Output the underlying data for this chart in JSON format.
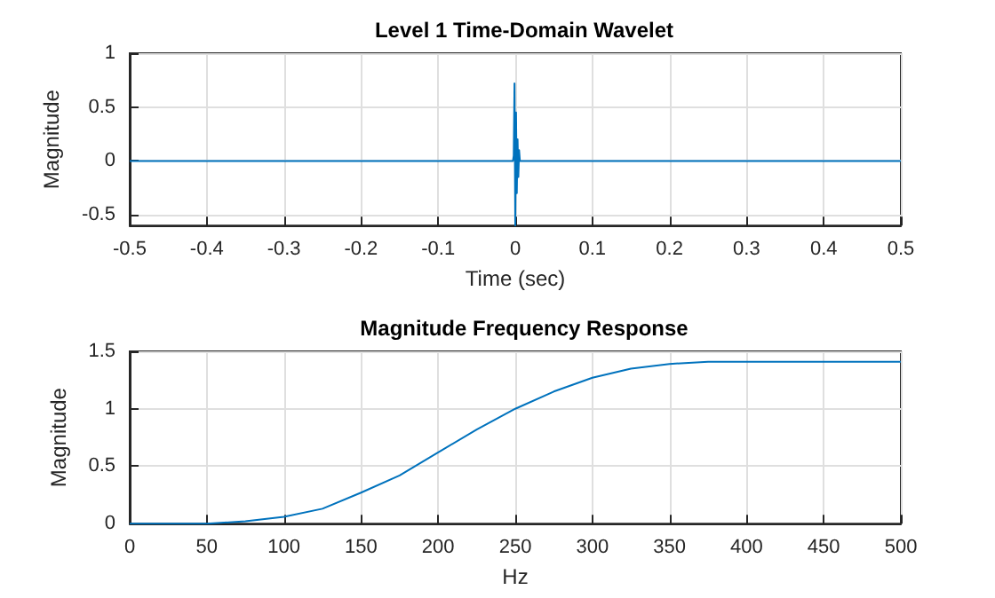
{
  "chart_data": [
    {
      "type": "line",
      "title": "Level 1 Time-Domain Wavelet",
      "xlabel": "Time (sec)",
      "ylabel": "Magnitude",
      "color": "#0072bd",
      "grid": true,
      "x": [
        -0.5,
        -0.003,
        -0.002,
        -0.001,
        0,
        0.001,
        0.002,
        0.003,
        0.004,
        0.005,
        0.006,
        0.5
      ],
      "values": [
        0,
        0,
        0.05,
        0.72,
        -0.6,
        0.45,
        -0.3,
        0.2,
        -0.15,
        0.1,
        0,
        0
      ],
      "xlim": [
        -0.5,
        0.5
      ],
      "xticks": [
        -0.5,
        -0.4,
        -0.3,
        -0.2,
        -0.1,
        0,
        0.1,
        0.2,
        0.3,
        0.4,
        0.5
      ],
      "ylim": [
        -0.6,
        1
      ],
      "yticks": [
        -0.5,
        0,
        0.5,
        1
      ]
    },
    {
      "type": "line",
      "title": "Magnitude Frequency Response",
      "xlabel": "Hz",
      "ylabel": "Magnitude",
      "color": "#0072bd",
      "grid": true,
      "x": [
        0,
        50,
        75,
        100,
        125,
        150,
        175,
        200,
        225,
        250,
        275,
        300,
        325,
        350,
        375,
        400,
        450,
        500
      ],
      "values": [
        0,
        0,
        0.02,
        0.06,
        0.13,
        0.27,
        0.42,
        0.62,
        0.82,
        1.0,
        1.15,
        1.27,
        1.35,
        1.39,
        1.41,
        1.41,
        1.41,
        1.41
      ],
      "xlim": [
        0,
        500
      ],
      "xticks": [
        0,
        50,
        100,
        150,
        200,
        250,
        300,
        350,
        400,
        450,
        500
      ],
      "ylim": [
        0,
        1.5
      ],
      "yticks": [
        0,
        0.5,
        1,
        1.5
      ]
    }
  ]
}
